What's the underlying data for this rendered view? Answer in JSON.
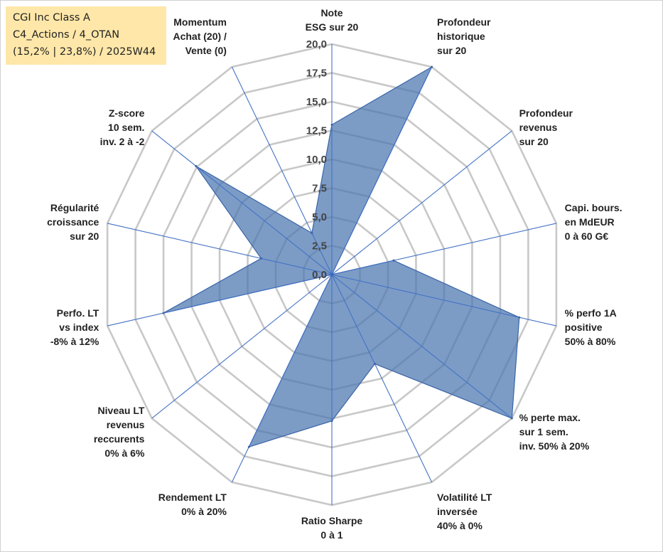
{
  "info": {
    "line1": "CGI Inc Class A",
    "line2": "C4_Actions / 4_OTAN",
    "line3": "(15,2% | 23,8%) / 2025W44"
  },
  "colors": {
    "fill": "#4a76b0",
    "fill_opacity": 0.72,
    "stroke": "#3a64a8",
    "grid": "#c8c8c8",
    "spoke": "#4472c4"
  },
  "chart_data": {
    "type": "radar",
    "title": "",
    "rmax": 20,
    "tick_labels": [
      "0,0",
      "2,5",
      "5,0",
      "7,5",
      "10,0",
      "12,5",
      "15,0",
      "17,5",
      "20,0"
    ],
    "axes": [
      {
        "label": [
          "Note",
          "ESG sur 20"
        ],
        "value": 13.0
      },
      {
        "label": [
          "Profondeur",
          "historique",
          "sur 20"
        ],
        "value": 20.0
      },
      {
        "label": [
          "Profondeur",
          "revenus",
          "sur 20"
        ],
        "value": 0.0
      },
      {
        "label": [
          "Capi. bours.",
          "en MdEUR",
          "0 à 60 G€"
        ],
        "value": 5.5
      },
      {
        "label": [
          "% perfo 1A",
          "positive",
          "50% à 80%"
        ],
        "value": 16.7
      },
      {
        "label": [
          "% perte max.",
          "sur 1 sem.",
          "inv. 50% à 20%"
        ],
        "value": 20.0
      },
      {
        "label": [
          "Volatilité LT",
          "inversée",
          "40% à 0%"
        ],
        "value": 8.6
      },
      {
        "label": [
          "Ratio Sharpe",
          "0 à 1"
        ],
        "value": 12.7
      },
      {
        "label": [
          "Rendement LT",
          "0% à 20%"
        ],
        "value": 16.6
      },
      {
        "label": [
          "Niveau LT",
          "revenus",
          "reccurents",
          "0% à 6%"
        ],
        "value": 0.0
      },
      {
        "label": [
          "Perfo. LT",
          "vs index",
          "-8% à 12%"
        ],
        "value": 15.0
      },
      {
        "label": [
          "Régularité",
          "croissance",
          "sur 20"
        ],
        "value": 6.3
      },
      {
        "label": [
          "Z-score",
          "10 sem.",
          "inv. 2 à -2"
        ],
        "value": 15.1
      },
      {
        "label": [
          "Momentum",
          "Achat (20) /",
          "Vente (0)"
        ],
        "value": 4.0
      }
    ]
  }
}
